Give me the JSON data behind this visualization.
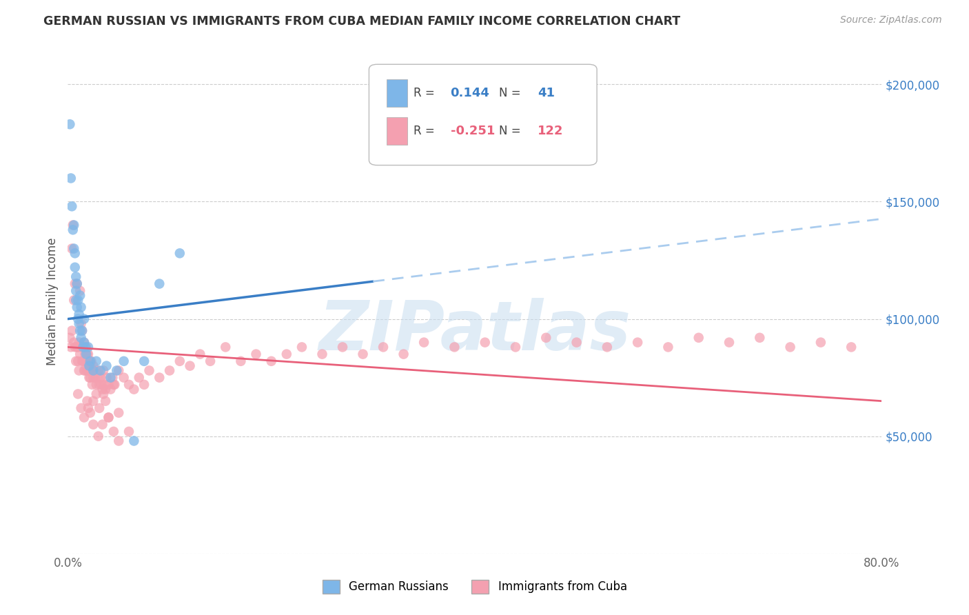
{
  "title": "GERMAN RUSSIAN VS IMMIGRANTS FROM CUBA MEDIAN FAMILY INCOME CORRELATION CHART",
  "source": "Source: ZipAtlas.com",
  "ylabel": "Median Family Income",
  "yticks": [
    0,
    50000,
    100000,
    150000,
    200000
  ],
  "ytick_labels": [
    "",
    "$50,000",
    "$100,000",
    "$150,000",
    "$200,000"
  ],
  "xmin": 0.0,
  "xmax": 0.8,
  "ymin": 0,
  "ymax": 215000,
  "blue_label": "German Russians",
  "pink_label": "Immigrants from Cuba",
  "blue_R": 0.144,
  "blue_N": 41,
  "pink_R": -0.251,
  "pink_N": 122,
  "blue_color": "#7eb6e8",
  "pink_color": "#f4a0b0",
  "blue_line_color": "#3a7ec6",
  "pink_line_color": "#e8607a",
  "dashed_line_color": "#aaccee",
  "watermark": "ZIPatlas",
  "watermark_color": "#c8ddf0",
  "blue_dots_x": [
    0.002,
    0.003,
    0.004,
    0.005,
    0.006,
    0.006,
    0.007,
    0.007,
    0.008,
    0.008,
    0.008,
    0.009,
    0.009,
    0.01,
    0.01,
    0.011,
    0.011,
    0.012,
    0.012,
    0.013,
    0.013,
    0.014,
    0.015,
    0.016,
    0.016,
    0.017,
    0.018,
    0.02,
    0.021,
    0.022,
    0.025,
    0.028,
    0.032,
    0.038,
    0.042,
    0.048,
    0.055,
    0.065,
    0.075,
    0.09,
    0.11
  ],
  "blue_dots_y": [
    183000,
    160000,
    148000,
    138000,
    130000,
    140000,
    128000,
    122000,
    118000,
    112000,
    108000,
    115000,
    105000,
    108000,
    100000,
    102000,
    98000,
    110000,
    95000,
    105000,
    92000,
    95000,
    88000,
    100000,
    90000,
    88000,
    85000,
    88000,
    80000,
    82000,
    78000,
    82000,
    78000,
    80000,
    75000,
    78000,
    82000,
    48000,
    82000,
    115000,
    128000
  ],
  "pink_dots_x": [
    0.002,
    0.003,
    0.004,
    0.004,
    0.005,
    0.006,
    0.006,
    0.007,
    0.007,
    0.008,
    0.009,
    0.009,
    0.01,
    0.01,
    0.011,
    0.011,
    0.012,
    0.012,
    0.013,
    0.013,
    0.014,
    0.014,
    0.015,
    0.015,
    0.016,
    0.016,
    0.017,
    0.017,
    0.018,
    0.018,
    0.019,
    0.019,
    0.02,
    0.02,
    0.021,
    0.021,
    0.022,
    0.022,
    0.023,
    0.023,
    0.024,
    0.024,
    0.025,
    0.025,
    0.026,
    0.027,
    0.028,
    0.029,
    0.03,
    0.031,
    0.032,
    0.033,
    0.034,
    0.035,
    0.036,
    0.037,
    0.038,
    0.04,
    0.042,
    0.044,
    0.046,
    0.05,
    0.055,
    0.06,
    0.065,
    0.07,
    0.075,
    0.08,
    0.09,
    0.1,
    0.11,
    0.12,
    0.13,
    0.14,
    0.155,
    0.17,
    0.185,
    0.2,
    0.215,
    0.23,
    0.25,
    0.27,
    0.29,
    0.31,
    0.33,
    0.35,
    0.38,
    0.41,
    0.44,
    0.47,
    0.5,
    0.53,
    0.56,
    0.59,
    0.62,
    0.65,
    0.68,
    0.71,
    0.74,
    0.77,
    0.015,
    0.02,
    0.025,
    0.03,
    0.035,
    0.04,
    0.045,
    0.05,
    0.01,
    0.013,
    0.016,
    0.019,
    0.022,
    0.025,
    0.028,
    0.031,
    0.034,
    0.037,
    0.04,
    0.045,
    0.05,
    0.06
  ],
  "pink_dots_y": [
    92000,
    88000,
    130000,
    95000,
    140000,
    108000,
    90000,
    88000,
    115000,
    82000,
    88000,
    115000,
    88000,
    82000,
    90000,
    78000,
    112000,
    85000,
    98000,
    88000,
    95000,
    82000,
    88000,
    82000,
    90000,
    78000,
    85000,
    78000,
    88000,
    82000,
    78000,
    85000,
    85000,
    78000,
    82000,
    75000,
    80000,
    75000,
    82000,
    78000,
    78000,
    72000,
    80000,
    75000,
    78000,
    75000,
    72000,
    75000,
    78000,
    72000,
    75000,
    72000,
    70000,
    78000,
    72000,
    70000,
    75000,
    72000,
    70000,
    75000,
    72000,
    78000,
    75000,
    72000,
    70000,
    75000,
    72000,
    78000,
    75000,
    78000,
    82000,
    80000,
    85000,
    82000,
    88000,
    82000,
    85000,
    82000,
    85000,
    88000,
    85000,
    88000,
    85000,
    88000,
    85000,
    90000,
    88000,
    90000,
    88000,
    92000,
    90000,
    88000,
    90000,
    88000,
    92000,
    90000,
    92000,
    88000,
    90000,
    88000,
    82000,
    62000,
    65000,
    50000,
    68000,
    58000,
    72000,
    60000,
    68000,
    62000,
    58000,
    65000,
    60000,
    55000,
    68000,
    62000,
    55000,
    65000,
    58000,
    52000,
    48000,
    52000
  ]
}
